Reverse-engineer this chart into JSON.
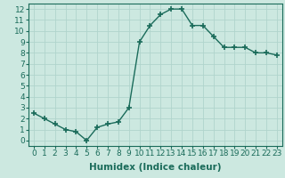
{
  "x": [
    0,
    1,
    2,
    3,
    4,
    5,
    6,
    7,
    8,
    9,
    10,
    11,
    12,
    13,
    14,
    15,
    16,
    17,
    18,
    19,
    20,
    21,
    22,
    23
  ],
  "y": [
    2.5,
    2.0,
    1.5,
    1.0,
    0.8,
    0.0,
    1.2,
    1.5,
    1.7,
    3.0,
    9.0,
    10.5,
    11.5,
    12.0,
    12.0,
    10.5,
    10.5,
    9.5,
    8.5,
    8.5,
    8.5,
    8.0,
    8.0,
    7.8
  ],
  "line_color": "#1a6b5a",
  "marker": "+",
  "marker_size": 4.0,
  "marker_lw": 1.2,
  "bg_color": "#cce8e0",
  "grid_color": "#b0d4cc",
  "xlabel": "Humidex (Indice chaleur)",
  "ylabel": "",
  "title": "",
  "xlim": [
    -0.5,
    23.5
  ],
  "ylim": [
    -0.5,
    12.5
  ],
  "xtick_labels": [
    "0",
    "1",
    "2",
    "3",
    "4",
    "5",
    "6",
    "7",
    "8",
    "9",
    "10",
    "11",
    "12",
    "13",
    "14",
    "15",
    "16",
    "17",
    "18",
    "19",
    "20",
    "21",
    "22",
    "23"
  ],
  "ytick_vals": [
    0,
    1,
    2,
    3,
    4,
    5,
    6,
    7,
    8,
    9,
    10,
    11,
    12
  ],
  "font_color": "#1a6b5a",
  "tick_fontsize": 6.5,
  "label_fontsize": 7.5,
  "linewidth": 1.0
}
